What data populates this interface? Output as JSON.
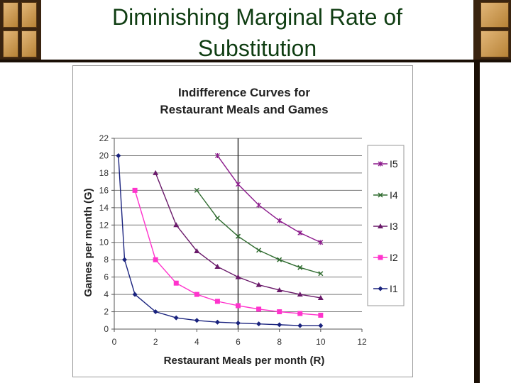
{
  "slide": {
    "title_line1": "Diminishing Marginal Rate of",
    "title_line2": "Substitution"
  },
  "chart_data": {
    "type": "line",
    "title_line1": "Indifference Curves for",
    "title_line2": "Restaurant Meals and Games",
    "xlabel": "Restaurant Meals per month (R)",
    "ylabel": "Games per month (G)",
    "xlim": [
      0,
      12
    ],
    "ylim": [
      0,
      22
    ],
    "xticks": [
      0,
      2,
      4,
      6,
      8,
      10,
      12
    ],
    "yticks": [
      0,
      2,
      4,
      6,
      8,
      10,
      12,
      14,
      16,
      18,
      20,
      22
    ],
    "grid": "horizontal",
    "legend_position": "right",
    "series": [
      {
        "name": "I5",
        "color": "#8b1a8b",
        "marker": "star",
        "x": [
          5,
          6,
          7,
          8,
          9,
          10
        ],
        "y": [
          20,
          16.7,
          14.3,
          12.5,
          11.1,
          10
        ]
      },
      {
        "name": "I4",
        "color": "#2f6b2f",
        "marker": "x",
        "x": [
          4,
          5,
          6,
          7,
          8,
          9,
          10
        ],
        "y": [
          16,
          12.8,
          10.7,
          9.1,
          8,
          7.1,
          6.4
        ]
      },
      {
        "name": "I3",
        "color": "#6a1a6a",
        "marker": "triangle",
        "x": [
          2,
          3,
          4,
          5,
          6,
          7,
          8,
          9,
          10
        ],
        "y": [
          18,
          12,
          9,
          7.2,
          6,
          5.1,
          4.5,
          4,
          3.6
        ]
      },
      {
        "name": "I2",
        "color": "#ff33cc",
        "marker": "square",
        "x": [
          1,
          2,
          3,
          4,
          5,
          6,
          7,
          8,
          9,
          10
        ],
        "y": [
          16,
          8,
          5.3,
          4,
          3.2,
          2.7,
          2.3,
          2,
          1.8,
          1.6
        ]
      },
      {
        "name": "I1",
        "color": "#1a237e",
        "marker": "diamond",
        "x": [
          0.2,
          0.5,
          1,
          2,
          3,
          4,
          5,
          6,
          7,
          8,
          9,
          10
        ],
        "y": [
          20,
          8,
          4,
          2,
          1.3,
          1,
          0.8,
          0.7,
          0.6,
          0.5,
          0.4,
          0.4
        ]
      }
    ]
  }
}
